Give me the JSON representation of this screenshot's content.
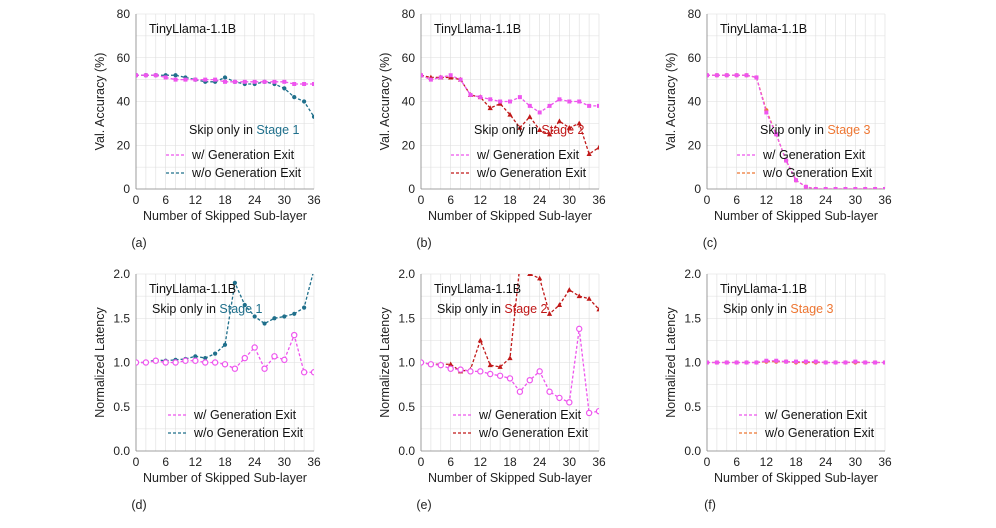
{
  "chart_data": [
    {
      "panel": "(a)",
      "type": "line",
      "model_label": "TinyLlama-1.1B",
      "annotation_prefix": "Skip only in ",
      "annotation_stage": "Stage 1",
      "stage_color": "#1f6f8b",
      "xlabel": "Number of Skipped Sub-layer",
      "ylabel": "Val. Accuracy (%)",
      "xlim": [
        0,
        36
      ],
      "ylim": [
        0,
        80
      ],
      "xticks": [
        "0",
        "6",
        "12",
        "18",
        "24",
        "30",
        "36"
      ],
      "yticks": [
        "0",
        "20",
        "40",
        "60",
        "80"
      ],
      "grid": true,
      "legend_position": "center-right",
      "series": [
        {
          "name": "w/ Generation Exit",
          "color": "#ee55ee",
          "marker": "square",
          "x": [
            0,
            2,
            4,
            6,
            8,
            10,
            12,
            14,
            16,
            18,
            20,
            22,
            24,
            26,
            28,
            30,
            32,
            34,
            36
          ],
          "y": [
            52,
            52,
            52,
            51,
            50,
            50,
            50,
            50,
            50,
            49,
            49,
            49,
            49,
            49,
            49,
            49,
            48,
            48,
            48
          ]
        },
        {
          "name": "w/o Generation Exit",
          "color": "#1f6f8b",
          "marker": "dot",
          "x": [
            0,
            2,
            4,
            6,
            8,
            10,
            12,
            14,
            16,
            18,
            20,
            22,
            24,
            26,
            28,
            30,
            32,
            34,
            36
          ],
          "y": [
            52,
            52,
            52,
            52,
            52,
            51,
            50,
            49,
            49,
            51,
            49,
            48,
            48,
            49,
            48,
            46,
            42,
            40,
            33
          ]
        }
      ]
    },
    {
      "panel": "(b)",
      "type": "line",
      "model_label": "TinyLlama-1.1B",
      "annotation_prefix": "Skip only in ",
      "annotation_stage": "Stage 2",
      "stage_color": "#c01818",
      "xlabel": "Number of Skipped Sub-layer",
      "ylabel": "Val. Accuracy (%)",
      "xlim": [
        0,
        36
      ],
      "ylim": [
        0,
        80
      ],
      "xticks": [
        "0",
        "6",
        "12",
        "18",
        "24",
        "30",
        "36"
      ],
      "yticks": [
        "0",
        "20",
        "40",
        "60",
        "80"
      ],
      "grid": true,
      "legend_position": "center-right",
      "series": [
        {
          "name": "w/ Generation Exit",
          "color": "#ee55ee",
          "marker": "square",
          "x": [
            0,
            2,
            4,
            6,
            8,
            10,
            12,
            14,
            16,
            18,
            20,
            22,
            24,
            26,
            28,
            30,
            32,
            34,
            36
          ],
          "y": [
            52,
            50,
            51,
            52,
            50,
            43,
            42,
            41,
            40,
            40,
            42,
            38,
            35,
            38,
            41,
            40,
            40,
            38,
            38
          ]
        },
        {
          "name": "w/o Generation Exit",
          "color": "#c01818",
          "marker": "triangle",
          "x": [
            0,
            2,
            4,
            6,
            8,
            10,
            12,
            14,
            16,
            18,
            20,
            22,
            24,
            26,
            28,
            30,
            32,
            34,
            36
          ],
          "y": [
            52,
            51,
            51,
            51,
            50,
            43,
            42,
            37,
            39,
            34,
            28,
            33,
            27,
            25,
            31,
            28,
            30,
            16,
            19
          ]
        }
      ]
    },
    {
      "panel": "(c)",
      "type": "line",
      "model_label": "TinyLlama-1.1B",
      "annotation_prefix": "Skip only in ",
      "annotation_stage": "Stage 3",
      "stage_color": "#ee7733",
      "xlabel": "Number of Skipped Sub-layer",
      "ylabel": "Val. Accuracy (%)",
      "xlim": [
        0,
        36
      ],
      "ylim": [
        0,
        80
      ],
      "xticks": [
        "0",
        "6",
        "12",
        "18",
        "24",
        "30",
        "36"
      ],
      "yticks": [
        "0",
        "20",
        "40",
        "60",
        "80"
      ],
      "grid": true,
      "legend_position": "center-right",
      "series": [
        {
          "name": "w/ Generation Exit",
          "color": "#ee55ee",
          "marker": "square",
          "x": [
            0,
            2,
            4,
            6,
            8,
            10,
            12,
            14,
            16,
            18,
            20,
            22,
            24,
            26,
            28,
            30,
            32,
            34,
            36
          ],
          "y": [
            52,
            52,
            52,
            52,
            52,
            51,
            35,
            25,
            13,
            4,
            1,
            0,
            0,
            0,
            0,
            0,
            0,
            0,
            0
          ]
        },
        {
          "name": "w/o Generation Exit",
          "color": "#ee7733",
          "marker": "dot",
          "x": [
            0,
            2,
            4,
            6,
            8,
            10,
            12,
            14,
            16,
            18,
            20,
            22,
            24,
            26,
            28,
            30,
            32,
            34,
            36
          ],
          "y": [
            52,
            52,
            52,
            52,
            52,
            51,
            36,
            25,
            13,
            4,
            1,
            0,
            0,
            0,
            0,
            0,
            0,
            0,
            0
          ]
        }
      ]
    },
    {
      "panel": "(d)",
      "type": "line",
      "model_label": "TinyLlama-1.1B",
      "annotation_prefix": "Skip only in ",
      "annotation_stage": "Stage 1",
      "stage_color": "#1f6f8b",
      "xlabel": "Number of Skipped Sub-layer",
      "ylabel": "Normalized Latency",
      "xlim": [
        0,
        36
      ],
      "ylim": [
        0,
        2
      ],
      "xticks": [
        "0",
        "6",
        "12",
        "18",
        "24",
        "30",
        "36"
      ],
      "yticks": [
        "0.0",
        "0.5",
        "1.0",
        "1.5",
        "2.0"
      ],
      "grid": true,
      "legend_position": "bottom-right",
      "series": [
        {
          "name": "w/ Generation Exit",
          "color": "#ee55ee",
          "marker": "circle",
          "x": [
            0,
            2,
            4,
            6,
            8,
            10,
            12,
            14,
            16,
            18,
            20,
            22,
            24,
            26,
            28,
            30,
            32,
            34,
            36
          ],
          "y": [
            1.0,
            1.0,
            1.02,
            1.0,
            1.0,
            1.02,
            1.02,
            1.0,
            1.0,
            0.98,
            0.93,
            1.05,
            1.17,
            0.93,
            1.07,
            1.03,
            1.31,
            0.89,
            0.89
          ]
        },
        {
          "name": "w/o Generation Exit",
          "color": "#1f6f8b",
          "marker": "dot",
          "x": [
            0,
            2,
            4,
            6,
            8,
            10,
            12,
            14,
            16,
            18,
            20,
            22,
            24,
            26,
            28,
            30,
            32,
            34,
            36
          ],
          "y": [
            1.0,
            1.0,
            1.03,
            1.02,
            1.03,
            1.04,
            1.07,
            1.05,
            1.1,
            1.2,
            1.9,
            1.65,
            1.52,
            1.44,
            1.5,
            1.52,
            1.55,
            1.62,
            2.05
          ]
        }
      ]
    },
    {
      "panel": "(e)",
      "type": "line",
      "model_label": "TinyLlama-1.1B",
      "annotation_prefix": "Skip only in ",
      "annotation_stage": "Stage 2",
      "stage_color": "#c01818",
      "xlabel": "Number of Skipped Sub-layer",
      "ylabel": "Normalized Latency",
      "xlim": [
        0,
        36
      ],
      "ylim": [
        0,
        2
      ],
      "xticks": [
        "0",
        "6",
        "12",
        "18",
        "24",
        "30",
        "36"
      ],
      "yticks": [
        "0.0",
        "0.5",
        "1.0",
        "1.5",
        "2.0"
      ],
      "grid": true,
      "legend_position": "bottom-right",
      "series": [
        {
          "name": "w/ Generation Exit",
          "color": "#ee55ee",
          "marker": "circle",
          "x": [
            0,
            2,
            4,
            6,
            8,
            10,
            12,
            14,
            16,
            18,
            20,
            22,
            24,
            26,
            28,
            30,
            32,
            34,
            36
          ],
          "y": [
            1.0,
            0.98,
            0.97,
            0.93,
            0.92,
            0.9,
            0.9,
            0.87,
            0.85,
            0.82,
            0.67,
            0.8,
            0.9,
            0.67,
            0.6,
            0.55,
            1.38,
            0.43,
            0.45
          ]
        },
        {
          "name": "w/o Generation Exit",
          "color": "#c01818",
          "marker": "triangle",
          "x": [
            0,
            2,
            4,
            6,
            8,
            10,
            12,
            14,
            16,
            18,
            20,
            22,
            24,
            26,
            28,
            30,
            32,
            34,
            36
          ],
          "y": [
            1.0,
            0.98,
            0.98,
            0.98,
            0.9,
            0.92,
            1.25,
            0.97,
            0.95,
            1.05,
            2.1,
            2.0,
            1.95,
            1.55,
            1.65,
            1.82,
            1.75,
            1.72,
            1.6
          ]
        }
      ]
    },
    {
      "panel": "(f)",
      "type": "line",
      "model_label": "TinyLlama-1.1B",
      "annotation_prefix": "Skip only in ",
      "annotation_stage": "Stage 3",
      "stage_color": "#ee7733",
      "xlabel": "Number of Skipped Sub-layer",
      "ylabel": "Normalized Latency",
      "xlim": [
        0,
        36
      ],
      "ylim": [
        0,
        2
      ],
      "xticks": [
        "0",
        "6",
        "12",
        "18",
        "24",
        "30",
        "36"
      ],
      "yticks": [
        "0.0",
        "0.5",
        "1.0",
        "1.5",
        "2.0"
      ],
      "grid": true,
      "legend_position": "bottom-right",
      "series": [
        {
          "name": "w/ Generation Exit",
          "color": "#ee55ee",
          "marker": "square",
          "x": [
            0,
            2,
            4,
            6,
            8,
            10,
            12,
            14,
            16,
            18,
            20,
            22,
            24,
            26,
            28,
            30,
            32,
            34,
            36
          ],
          "y": [
            1.0,
            1.0,
            1.0,
            1.0,
            1.0,
            1.0,
            1.02,
            1.02,
            1.01,
            1.01,
            1.01,
            1.01,
            1.0,
            1.0,
            1.0,
            1.01,
            1.0,
            1.0,
            1.0
          ]
        },
        {
          "name": "w/o Generation Exit",
          "color": "#ee7733",
          "marker": "dot",
          "x": [
            0,
            2,
            4,
            6,
            8,
            10,
            12,
            14,
            16,
            18,
            20,
            22,
            24,
            26,
            28,
            30,
            32,
            34,
            36
          ],
          "y": [
            1.0,
            1.0,
            1.0,
            1.0,
            1.0,
            1.0,
            1.01,
            1.01,
            1.01,
            1.0,
            1.0,
            1.0,
            1.0,
            1.0,
            1.0,
            1.0,
            1.0,
            1.0,
            1.0
          ]
        }
      ]
    }
  ]
}
